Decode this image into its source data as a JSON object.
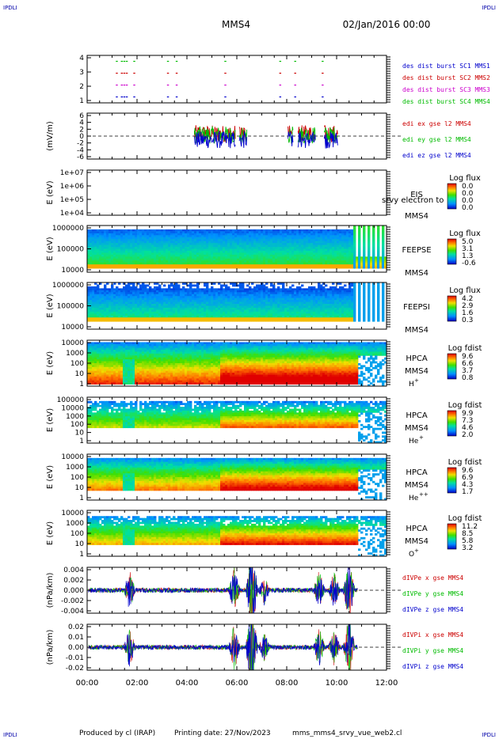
{
  "header": {
    "corner_tl": "IPDLI",
    "corner_tr": "IPDLI",
    "corner_bl": "IPDLI",
    "corner_br": "IPDLI",
    "title": "MMS4",
    "date": "02/Jan/2016 00:00"
  },
  "footer": {
    "produced": "Produced by cl (IRAP)",
    "printing": "Printing date: 27/Nov/2023",
    "file": "mms_mms4_srvy_vue_web2.cl"
  },
  "time_axis": {
    "ticks": [
      "00:00",
      "02:00",
      "04:00",
      "06:00",
      "08:00",
      "10:00",
      "12:00"
    ]
  },
  "chart_data": [
    {
      "type": "scatter",
      "panel": "burst",
      "y_ticks": [
        "4",
        "3",
        "2",
        "1"
      ],
      "ylim": [
        0.5,
        4.5
      ],
      "legend": [
        {
          "label": "des dist burst SC1 MMS1",
          "color": "#0000cc"
        },
        {
          "label": "des dist burst SC2 MMS2",
          "color": "#cc0000"
        },
        {
          "label": "des dist burst SC3 MMS3",
          "color": "#cc00cc"
        },
        {
          "label": "des dist burst SC4 MMS4",
          "color": "#00bb00"
        }
      ],
      "burst_hours": [
        1.15,
        1.35,
        1.45,
        1.55,
        1.85,
        3.2,
        3.55,
        5.5,
        7.7,
        8.3,
        9.4
      ]
    },
    {
      "type": "line",
      "panel": "edi",
      "ylabel": "(mV/m)",
      "y_ticks": [
        "6",
        "4",
        "2",
        "0",
        "-2",
        "-4",
        "-6"
      ],
      "ylim": [
        -6,
        6
      ],
      "legend": [
        {
          "label": "edi ex gse l2 MMS4",
          "color": "#cc0000"
        },
        {
          "label": "edi ey gse l2 MMS4",
          "color": "#00bb00"
        },
        {
          "label": "edi ez gse l2 MMS4",
          "color": "#0000cc"
        }
      ],
      "segments": [
        [
          4.3,
          5.95
        ],
        [
          6.1,
          6.4
        ],
        [
          8.05,
          8.25
        ],
        [
          8.45,
          9.15
        ],
        [
          9.5,
          10.05
        ]
      ]
    },
    {
      "type": "heatmap",
      "panel": "eis",
      "ylabel": "E (eV)",
      "y_ticks": [
        "1e+07",
        "1e+06",
        "1e+05",
        "1e+04"
      ],
      "ylim": [
        10000,
        10000000
      ],
      "instrument": "EIS",
      "instrument_sub": "MMS4",
      "extra": "srvy electron to",
      "cbar_title": "Log flux",
      "cbar_ticks": [
        "0.0",
        "0.0",
        "0.0",
        "0.0"
      ]
    },
    {
      "type": "heatmap",
      "panel": "feepse",
      "ylabel": "E (eV)",
      "y_ticks": [
        "1000000",
        "100000",
        "10000"
      ],
      "ylim": [
        10000,
        1000000
      ],
      "instrument": "FEEPSE",
      "instrument_sub": "MMS4",
      "cbar_title": "Log flux",
      "cbar_ticks": [
        "5.0",
        "3.1",
        "1.3",
        "-0.6"
      ]
    },
    {
      "type": "heatmap",
      "panel": "feepsi",
      "ylabel": "E (eV)",
      "y_ticks": [
        "1000000",
        "100000",
        "10000"
      ],
      "ylim": [
        10000,
        1000000
      ],
      "instrument": "FEEPSI",
      "instrument_sub": "MMS4",
      "cbar_title": "Log flux",
      "cbar_ticks": [
        "4.2",
        "2.9",
        "1.6",
        "0.3"
      ]
    },
    {
      "type": "heatmap",
      "panel": "hpca_h",
      "ylabel": "E (eV)",
      "y_ticks": [
        "10000",
        "1000",
        "100",
        "10",
        "1"
      ],
      "ylim": [
        1,
        30000
      ],
      "instrument": "HPCA",
      "instrument_sub": "MMS4",
      "species": "H",
      "species_sup": "+",
      "cbar_title": "Log fdist",
      "cbar_ticks": [
        "9.6",
        "6.6",
        "3.7",
        "0.8"
      ]
    },
    {
      "type": "heatmap",
      "panel": "hpca_he",
      "ylabel": "E (eV)",
      "y_ticks": [
        "100000",
        "10000",
        "1000",
        "100",
        "10",
        "1"
      ],
      "ylim": [
        1,
        100000
      ],
      "instrument": "HPCA",
      "instrument_sub": "MMS4",
      "species": "He",
      "species_sup": "+",
      "cbar_title": "Log fdist",
      "cbar_ticks": [
        "9.9",
        "7.3",
        "4.6",
        "2.0"
      ]
    },
    {
      "type": "heatmap",
      "panel": "hpca_hepp",
      "ylabel": "E (eV)",
      "y_ticks": [
        "10000",
        "1000",
        "100",
        "10",
        "1"
      ],
      "ylim": [
        1,
        30000
      ],
      "instrument": "HPCA",
      "instrument_sub": "MMS4",
      "species": "He",
      "species_sup": "++",
      "cbar_title": "Log fdist",
      "cbar_ticks": [
        "9.6",
        "6.9",
        "4.3",
        "1.7"
      ]
    },
    {
      "type": "heatmap",
      "panel": "hpca_o",
      "ylabel": "E (eV)",
      "y_ticks": [
        "10000",
        "1000",
        "100",
        "10",
        "1"
      ],
      "ylim": [
        1,
        30000
      ],
      "instrument": "HPCA",
      "instrument_sub": "MMS4",
      "species": "O",
      "species_sup": "+",
      "cbar_title": "Log fdist",
      "cbar_ticks": [
        "11.2",
        "8.5",
        "5.8",
        "3.2"
      ]
    },
    {
      "type": "line",
      "panel": "divpe",
      "ylabel": "(nPa/km)",
      "y_ticks": [
        "0.004",
        "0.002",
        "0.000",
        "-0.002",
        "-0.004"
      ],
      "ylim": [
        -0.0048,
        0.0048
      ],
      "legend": [
        {
          "label": "dIVPe x gse MMS4",
          "color": "#cc0000"
        },
        {
          "label": "dIVPe y gse MMS4",
          "color": "#00bb00"
        },
        {
          "label": "dIVPe z gse MMS4",
          "color": "#0000cc"
        }
      ]
    },
    {
      "type": "line",
      "panel": "divpi",
      "ylabel": "(nPa/km)",
      "y_ticks": [
        "0.02",
        "0.01",
        "0.00",
        "-0.01",
        "-0.02"
      ],
      "ylim": [
        -0.024,
        0.024
      ],
      "legend": [
        {
          "label": "dIVPi x gse MMS4",
          "color": "#cc0000"
        },
        {
          "label": "dIVPi y gse MMS4",
          "color": "#00bb00"
        },
        {
          "label": "dIVPi z gse MMS4",
          "color": "#0000cc"
        }
      ]
    }
  ]
}
